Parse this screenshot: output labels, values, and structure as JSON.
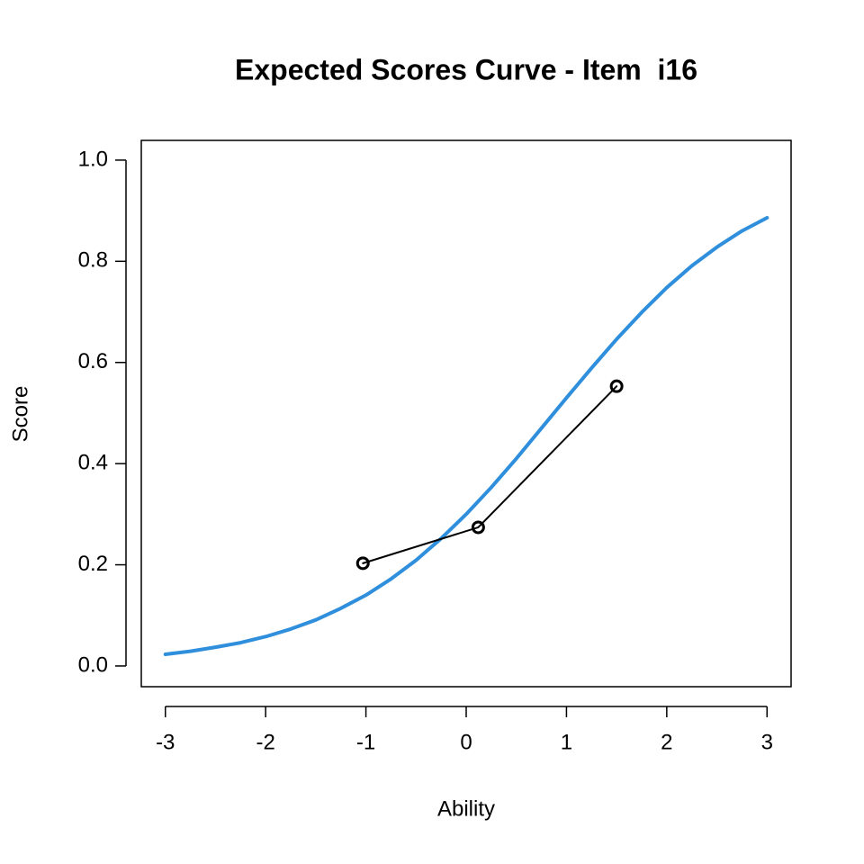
{
  "chart_data": {
    "type": "line",
    "title": "Expected Scores Curve - Item  i16",
    "xlabel": "Ability",
    "ylabel": "Score",
    "xlim": [
      -3.24,
      3.24
    ],
    "ylim": [
      -0.041,
      1.039
    ],
    "xticks": [
      -3,
      -2,
      -1,
      0,
      1,
      2,
      3
    ],
    "yticks": [
      {
        "value": 0,
        "label": "0.0"
      },
      0.2,
      0.4,
      0.6,
      0.8,
      {
        "value": 1,
        "label": "1.0"
      }
    ],
    "series": [
      {
        "color": "#2f8fdc",
        "line_width": 4,
        "markers": false,
        "x": [
          -3,
          -2.75,
          -2.5,
          -2.25,
          -2,
          -1.75,
          -1.5,
          -1.25,
          -1,
          -0.75,
          -0.5,
          -0.25,
          0,
          0.25,
          0.5,
          0.75,
          1,
          1.25,
          1.5,
          1.75,
          2,
          2.25,
          2.5,
          2.75,
          3
        ],
        "values": [
          0.023,
          0.029,
          0.037,
          0.046,
          0.058,
          0.073,
          0.091,
          0.114,
          0.14,
          0.172,
          0.209,
          0.252,
          0.3,
          0.353,
          0.41,
          0.47,
          0.53,
          0.589,
          0.646,
          0.699,
          0.748,
          0.791,
          0.828,
          0.86,
          0.886
        ]
      },
      {
        "color": "#000000",
        "line_width": 2,
        "markers": true,
        "x": [
          -1.03,
          0.12,
          1.5
        ],
        "values": [
          0.203,
          0.274,
          0.553
        ]
      }
    ]
  }
}
